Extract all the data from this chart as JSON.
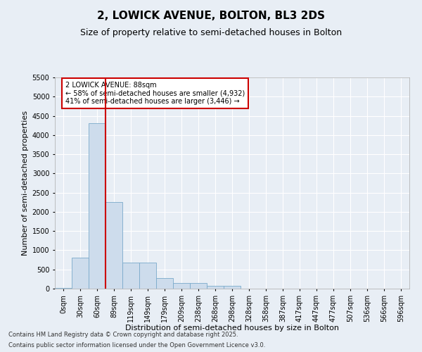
{
  "title": "2, LOWICK AVENUE, BOLTON, BL3 2DS",
  "subtitle": "Size of property relative to semi-detached houses in Bolton",
  "xlabel": "Distribution of semi-detached houses by size in Bolton",
  "ylabel": "Number of semi-detached properties",
  "bar_color": "#cddcec",
  "bar_edge_color": "#7aaaca",
  "categories": [
    "0sqm",
    "30sqm",
    "60sqm",
    "89sqm",
    "119sqm",
    "149sqm",
    "179sqm",
    "209sqm",
    "238sqm",
    "268sqm",
    "298sqm",
    "328sqm",
    "358sqm",
    "387sqm",
    "417sqm",
    "447sqm",
    "477sqm",
    "507sqm",
    "536sqm",
    "566sqm",
    "596sqm"
  ],
  "values": [
    10,
    800,
    4300,
    2250,
    680,
    680,
    280,
    150,
    150,
    70,
    70,
    0,
    0,
    0,
    0,
    0,
    0,
    0,
    0,
    0,
    0
  ],
  "ylim": [
    0,
    5500
  ],
  "yticks": [
    0,
    500,
    1000,
    1500,
    2000,
    2500,
    3000,
    3500,
    4000,
    4500,
    5000,
    5500
  ],
  "vline_color": "#cc0000",
  "annotation_title": "2 LOWICK AVENUE: 88sqm",
  "annotation_line1": "← 58% of semi-detached houses are smaller (4,932)",
  "annotation_line2": "41% of semi-detached houses are larger (3,446) →",
  "annotation_box_color": "#cc0000",
  "footer_line1": "Contains HM Land Registry data © Crown copyright and database right 2025.",
  "footer_line2": "Contains public sector information licensed under the Open Government Licence v3.0.",
  "background_color": "#e8eef5",
  "grid_color": "#ffffff",
  "title_fontsize": 11,
  "subtitle_fontsize": 9,
  "tick_fontsize": 7,
  "ylabel_fontsize": 8,
  "xlabel_fontsize": 8,
  "footer_fontsize": 6
}
